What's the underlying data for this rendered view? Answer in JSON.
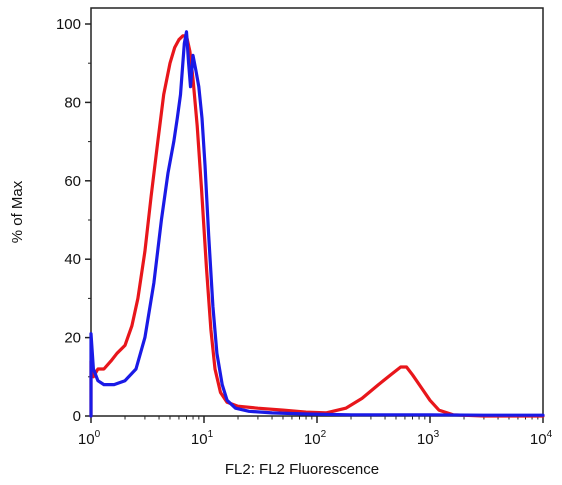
{
  "chart_data": {
    "type": "line",
    "title": "",
    "xlabel": "FL2: FL2 Fluorescence",
    "ylabel": "% of Max",
    "x_scale": "log",
    "xlim": [
      1,
      10000
    ],
    "ylim": [
      0,
      100
    ],
    "grid": false,
    "legend": "none",
    "x_ticks": [
      {
        "base": "10",
        "exp": "0",
        "value": 1
      },
      {
        "base": "10",
        "exp": "1",
        "value": 10
      },
      {
        "base": "10",
        "exp": "2",
        "value": 100
      },
      {
        "base": "10",
        "exp": "3",
        "value": 1000
      },
      {
        "base": "10",
        "exp": "4",
        "value": 10000
      }
    ],
    "y_ticks": [
      {
        "label": "0",
        "value": 0
      },
      {
        "label": "20",
        "value": 20
      },
      {
        "label": "40",
        "value": 40
      },
      {
        "label": "60",
        "value": 60
      },
      {
        "label": "80",
        "value": 80
      },
      {
        "label": "100",
        "value": 100
      }
    ],
    "series": [
      {
        "color": "#e8161b",
        "points": [
          [
            1.0,
            0
          ],
          [
            1.0,
            14
          ],
          [
            1.05,
            10
          ],
          [
            1.15,
            12
          ],
          [
            1.3,
            12
          ],
          [
            1.5,
            14
          ],
          [
            1.7,
            16
          ],
          [
            2.0,
            18
          ],
          [
            2.3,
            23
          ],
          [
            2.6,
            30
          ],
          [
            3.0,
            42
          ],
          [
            3.4,
            56
          ],
          [
            3.9,
            70
          ],
          [
            4.4,
            82
          ],
          [
            5.0,
            90
          ],
          [
            5.5,
            94
          ],
          [
            6.0,
            96
          ],
          [
            6.5,
            97
          ],
          [
            7.0,
            97
          ],
          [
            7.5,
            93
          ],
          [
            8.0,
            86
          ],
          [
            8.7,
            74
          ],
          [
            9.5,
            58
          ],
          [
            10.5,
            38
          ],
          [
            11.5,
            22
          ],
          [
            12.5,
            12
          ],
          [
            14,
            6
          ],
          [
            16,
            3.5
          ],
          [
            20,
            2.5
          ],
          [
            30,
            2
          ],
          [
            50,
            1.5
          ],
          [
            80,
            1
          ],
          [
            120,
            0.8
          ],
          [
            180,
            2
          ],
          [
            250,
            4.5
          ],
          [
            350,
            8
          ],
          [
            450,
            10.5
          ],
          [
            550,
            12.5
          ],
          [
            620,
            12.5
          ],
          [
            700,
            10.5
          ],
          [
            850,
            7
          ],
          [
            1000,
            4
          ],
          [
            1200,
            1.5
          ],
          [
            1600,
            0.3
          ],
          [
            3000,
            0
          ],
          [
            10000,
            0
          ]
        ]
      },
      {
        "color": "#1a1ae6",
        "points": [
          [
            1.0,
            0
          ],
          [
            1.0,
            21
          ],
          [
            1.05,
            12
          ],
          [
            1.15,
            9
          ],
          [
            1.3,
            8
          ],
          [
            1.6,
            8
          ],
          [
            2.0,
            9
          ],
          [
            2.5,
            12
          ],
          [
            3.0,
            20
          ],
          [
            3.6,
            34
          ],
          [
            4.2,
            50
          ],
          [
            4.8,
            62
          ],
          [
            5.4,
            70
          ],
          [
            5.8,
            76
          ],
          [
            6.2,
            82
          ],
          [
            6.7,
            95
          ],
          [
            7.0,
            98
          ],
          [
            7.3,
            90
          ],
          [
            7.6,
            84
          ],
          [
            8.0,
            92
          ],
          [
            8.5,
            88
          ],
          [
            9.0,
            84
          ],
          [
            9.6,
            76
          ],
          [
            10.2,
            64
          ],
          [
            11.0,
            46
          ],
          [
            12.0,
            28
          ],
          [
            13.0,
            16
          ],
          [
            14.5,
            8
          ],
          [
            16,
            4
          ],
          [
            19,
            2
          ],
          [
            25,
            1.2
          ],
          [
            40,
            0.8
          ],
          [
            80,
            0.5
          ],
          [
            200,
            0.3
          ],
          [
            500,
            0.3
          ],
          [
            1000,
            0.3
          ],
          [
            3000,
            0.2
          ],
          [
            10000,
            0.2
          ]
        ]
      }
    ]
  }
}
